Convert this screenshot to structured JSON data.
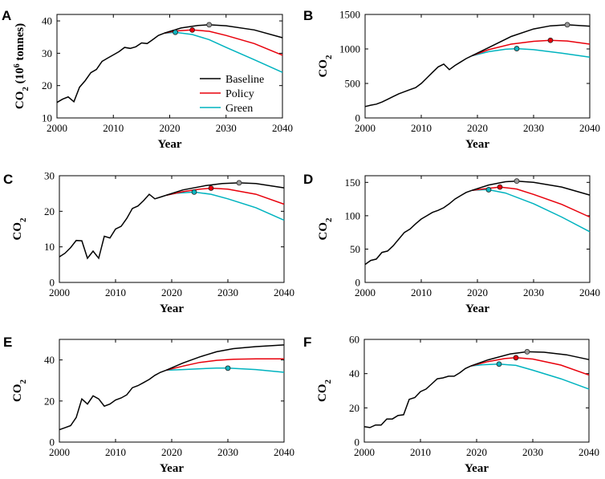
{
  "figure": {
    "legend": {
      "entries": [
        "Baseline",
        "Policy",
        "Green"
      ],
      "placement": "lower-right of panel A"
    },
    "colors": {
      "Baseline": "#000000",
      "Policy": "#e8000b",
      "Green": "#00b3bf",
      "Baseline_peak": "#9a9a9a",
      "Policy_peak": "#e8000b",
      "Green_peak": "#10b5c0"
    }
  },
  "chart_data": [
    {
      "id": "A",
      "panel_label": "A",
      "type": "line",
      "xlabel": "Year",
      "ylabel": "CO",
      "ylabel_sub": "2",
      "ylabel_extra": "(10",
      "ylabel_sup": "6",
      "ylabel_tail": " tonnes)",
      "xlim": [
        2000,
        2040
      ],
      "ylim": [
        10,
        42
      ],
      "xticks": [
        2000,
        2010,
        2020,
        2030,
        2040
      ],
      "yticks": [
        10,
        20,
        30,
        40
      ],
      "show_legend": true,
      "history": {
        "x": [
          2000,
          2001,
          2002,
          2003,
          2004,
          2005,
          2006,
          2007,
          2008,
          2009,
          2010,
          2011,
          2012,
          2013,
          2014,
          2015,
          2016,
          2017,
          2018,
          2019
        ],
        "y": [
          14.8,
          15.8,
          16.5,
          15.0,
          19.5,
          21.5,
          24.0,
          25.0,
          27.5,
          28.5,
          29.5,
          30.5,
          31.8,
          31.5,
          32.0,
          33.2,
          33.0,
          34.2,
          35.5,
          36.2
        ]
      },
      "series": [
        {
          "name": "Baseline",
          "x": [
            2019,
            2022,
            2025,
            2027,
            2030,
            2035,
            2040
          ],
          "y": [
            36.2,
            37.8,
            38.6,
            38.8,
            38.5,
            37.2,
            34.8
          ],
          "peak": [
            2027,
            38.8
          ]
        },
        {
          "name": "Policy",
          "x": [
            2019,
            2021,
            2024,
            2027,
            2030,
            2035,
            2040
          ],
          "y": [
            36.2,
            36.9,
            37.2,
            36.8,
            35.5,
            33.0,
            29.4
          ],
          "peak": [
            2024,
            37.2
          ]
        },
        {
          "name": "Green",
          "x": [
            2019,
            2021,
            2024,
            2027,
            2030,
            2035,
            2040
          ],
          "y": [
            36.2,
            36.5,
            35.8,
            34.2,
            31.8,
            28.0,
            24.1
          ],
          "peak": [
            2021,
            36.5
          ]
        }
      ]
    },
    {
      "id": "B",
      "panel_label": "B",
      "type": "line",
      "xlabel": "Year",
      "ylabel": "CO",
      "ylabel_sub": "2",
      "xlim": [
        2000,
        2040
      ],
      "ylim": [
        0,
        1500
      ],
      "xticks": [
        2000,
        2010,
        2020,
        2030,
        2040
      ],
      "yticks": [
        0,
        500,
        1000,
        1500
      ],
      "show_legend": false,
      "history": {
        "x": [
          2000,
          2001,
          2002,
          2003,
          2004,
          2005,
          2006,
          2007,
          2008,
          2009,
          2010,
          2011,
          2012,
          2013,
          2014,
          2015,
          2016,
          2017,
          2018,
          2019
        ],
        "y": [
          165,
          185,
          200,
          230,
          270,
          310,
          350,
          380,
          410,
          440,
          500,
          580,
          660,
          740,
          780,
          700,
          760,
          810,
          860,
          900
        ]
      },
      "series": [
        {
          "name": "Baseline",
          "x": [
            2019,
            2022,
            2026,
            2030,
            2033,
            2036,
            2040
          ],
          "y": [
            900,
            1020,
            1180,
            1290,
            1335,
            1350,
            1330
          ],
          "peak": [
            2036,
            1350
          ]
        },
        {
          "name": "Policy",
          "x": [
            2019,
            2022,
            2026,
            2030,
            2033,
            2036,
            2040
          ],
          "y": [
            900,
            990,
            1070,
            1110,
            1125,
            1115,
            1070
          ],
          "peak": [
            2033,
            1125
          ]
        },
        {
          "name": "Green",
          "x": [
            2019,
            2022,
            2025,
            2027,
            2030,
            2035,
            2040
          ],
          "y": [
            900,
            960,
            995,
            1005,
            990,
            940,
            880
          ],
          "peak": [
            2027,
            1005
          ]
        }
      ]
    },
    {
      "id": "C",
      "panel_label": "C",
      "type": "line",
      "xlabel": "Year",
      "ylabel": "CO",
      "ylabel_sub": "2",
      "xlim": [
        2000,
        2040
      ],
      "ylim": [
        0,
        30
      ],
      "xticks": [
        2000,
        2010,
        2020,
        2030,
        2040
      ],
      "yticks": [
        0,
        10,
        20,
        30
      ],
      "show_legend": false,
      "history": {
        "x": [
          2000,
          2001,
          2002,
          2003,
          2004,
          2005,
          2006,
          2007,
          2008,
          2009,
          2010,
          2011,
          2012,
          2013,
          2014,
          2015,
          2016,
          2017,
          2018,
          2019
        ],
        "y": [
          7.2,
          8.2,
          9.8,
          11.8,
          11.7,
          6.8,
          8.8,
          6.8,
          13.0,
          12.5,
          15.0,
          15.8,
          18.0,
          20.8,
          21.5,
          23.0,
          24.8,
          23.5,
          24.0,
          24.5
        ]
      },
      "series": [
        {
          "name": "Baseline",
          "x": [
            2019,
            2022,
            2026,
            2029,
            2032,
            2035,
            2040
          ],
          "y": [
            24.5,
            26.0,
            27.2,
            27.8,
            28.0,
            27.8,
            26.6
          ],
          "peak": [
            2032,
            28.0
          ]
        },
        {
          "name": "Policy",
          "x": [
            2019,
            2022,
            2025,
            2027,
            2030,
            2035,
            2040
          ],
          "y": [
            24.5,
            25.5,
            26.2,
            26.5,
            26.2,
            24.8,
            22.0
          ],
          "peak": [
            2027,
            26.5
          ]
        },
        {
          "name": "Green",
          "x": [
            2019,
            2021,
            2024,
            2027,
            2030,
            2035,
            2040
          ],
          "y": [
            24.5,
            25.1,
            25.4,
            24.8,
            23.5,
            21.0,
            17.5
          ],
          "peak": [
            2024,
            25.4
          ]
        }
      ]
    },
    {
      "id": "D",
      "panel_label": "D",
      "type": "line",
      "xlabel": "Year",
      "ylabel": "CO",
      "ylabel_sub": "2",
      "xlim": [
        2000,
        2040
      ],
      "ylim": [
        0,
        160
      ],
      "xticks": [
        2000,
        2010,
        2020,
        2030,
        2040
      ],
      "yticks": [
        0,
        50,
        100,
        150
      ],
      "show_legend": false,
      "history": {
        "x": [
          2000,
          2001,
          2002,
          2003,
          2004,
          2005,
          2006,
          2007,
          2008,
          2009,
          2010,
          2011,
          2012,
          2013,
          2014,
          2015,
          2016,
          2017,
          2018,
          2019
        ],
        "y": [
          27,
          33,
          35,
          45,
          47,
          55,
          65,
          75,
          80,
          88,
          95,
          100,
          105,
          108,
          112,
          118,
          125,
          130,
          135,
          138
        ]
      },
      "series": [
        {
          "name": "Baseline",
          "x": [
            2019,
            2022,
            2025,
            2027,
            2030,
            2035,
            2040
          ],
          "y": [
            138,
            146,
            151,
            152,
            150,
            143,
            131
          ],
          "peak": [
            2027,
            152
          ]
        },
        {
          "name": "Policy",
          "x": [
            2019,
            2022,
            2024,
            2027,
            2030,
            2035,
            2040
          ],
          "y": [
            138,
            141,
            143,
            140,
            132,
            117,
            98
          ],
          "peak": [
            2024,
            143
          ]
        },
        {
          "name": "Green",
          "x": [
            2019,
            2021,
            2022,
            2025,
            2030,
            2035,
            2040
          ],
          "y": [
            138,
            139,
            139,
            134,
            118,
            98,
            76
          ],
          "peak": [
            2022,
            139
          ]
        }
      ]
    },
    {
      "id": "E",
      "panel_label": "E",
      "type": "line",
      "xlabel": "Year",
      "ylabel": "CO",
      "ylabel_sub": "2",
      "xlim": [
        2000,
        2040
      ],
      "ylim": [
        0,
        50
      ],
      "xticks": [
        2000,
        2010,
        2020,
        2030,
        2040
      ],
      "yticks": [
        0,
        20,
        40
      ],
      "show_legend": false,
      "history": {
        "x": [
          2000,
          2001,
          2002,
          2003,
          2004,
          2005,
          2006,
          2007,
          2008,
          2009,
          2010,
          2011,
          2012,
          2013,
          2014,
          2015,
          2016,
          2017,
          2018,
          2019
        ],
        "y": [
          6.0,
          7.0,
          8.0,
          12.0,
          21.0,
          18.5,
          22.5,
          21.0,
          17.5,
          18.5,
          20.5,
          21.5,
          23.0,
          26.5,
          27.5,
          29.0,
          30.5,
          32.5,
          34.0,
          35.0
        ]
      },
      "series": [
        {
          "name": "Baseline",
          "x": [
            2019,
            2022,
            2025,
            2028,
            2031,
            2035,
            2040
          ],
          "y": [
            35.0,
            38.5,
            41.5,
            44.0,
            45.5,
            46.5,
            47.3
          ]
        },
        {
          "name": "Policy",
          "x": [
            2019,
            2022,
            2025,
            2028,
            2031,
            2035,
            2040
          ],
          "y": [
            35.0,
            37.0,
            38.8,
            39.8,
            40.3,
            40.5,
            40.5
          ]
        },
        {
          "name": "Green",
          "x": [
            2019,
            2022,
            2025,
            2028,
            2030,
            2035,
            2040
          ],
          "y": [
            35.0,
            35.3,
            35.7,
            36.0,
            36.0,
            35.3,
            34.0
          ],
          "peak": [
            2030,
            36.0
          ]
        }
      ]
    },
    {
      "id": "F",
      "panel_label": "F",
      "type": "line",
      "xlabel": "Year",
      "ylabel": "CO",
      "ylabel_sub": "2",
      "xlim": [
        2000,
        2040
      ],
      "ylim": [
        0,
        60
      ],
      "xticks": [
        2000,
        2010,
        2020,
        2030,
        2040
      ],
      "yticks": [
        0,
        20,
        40,
        60
      ],
      "show_legend": false,
      "history": {
        "x": [
          2000,
          2001,
          2002,
          2003,
          2004,
          2005,
          2006,
          2007,
          2008,
          2009,
          2010,
          2011,
          2012,
          2013,
          2014,
          2015,
          2016,
          2017,
          2018,
          2019
        ],
        "y": [
          9.0,
          8.5,
          10.0,
          10.0,
          13.5,
          13.5,
          15.5,
          16.0,
          25.0,
          26.0,
          29.5,
          31.0,
          34.0,
          37.0,
          37.5,
          38.5,
          38.5,
          40.5,
          43.0,
          44.5
        ]
      },
      "series": [
        {
          "name": "Baseline",
          "x": [
            2019,
            2022,
            2026,
            2029,
            2032,
            2036,
            2040
          ],
          "y": [
            44.5,
            48.0,
            51.5,
            52.8,
            52.5,
            51.0,
            48.2
          ],
          "peak": [
            2029,
            52.8
          ]
        },
        {
          "name": "Policy",
          "x": [
            2019,
            2022,
            2025,
            2027,
            2030,
            2035,
            2040
          ],
          "y": [
            44.5,
            47.0,
            48.8,
            49.3,
            48.5,
            45.0,
            39.2
          ],
          "peak": [
            2027,
            49.3
          ]
        },
        {
          "name": "Green",
          "x": [
            2019,
            2021,
            2024,
            2027,
            2030,
            2035,
            2040
          ],
          "y": [
            44.5,
            45.2,
            45.6,
            44.8,
            42.0,
            37.0,
            31.0
          ],
          "peak": [
            2024,
            45.6
          ]
        }
      ]
    }
  ]
}
